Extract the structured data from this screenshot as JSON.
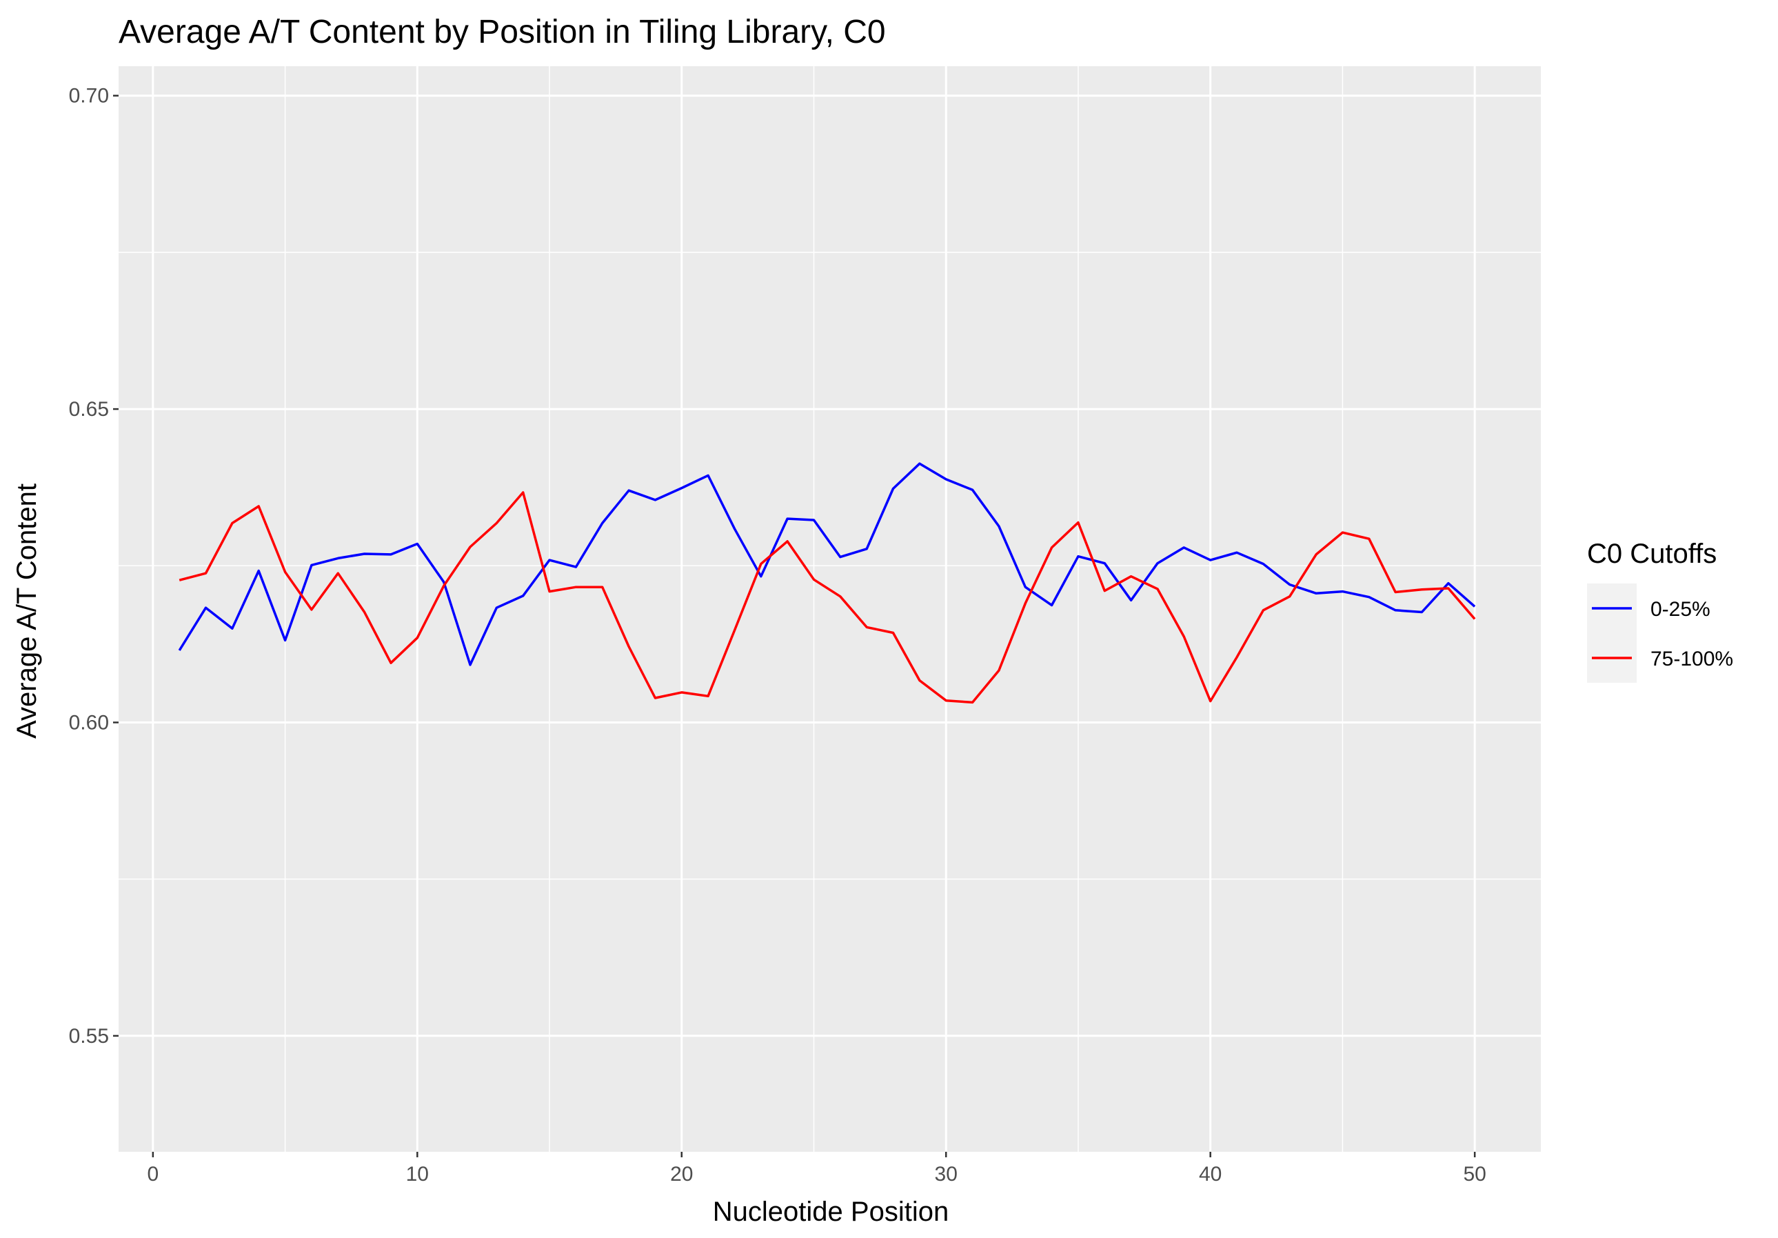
{
  "chart_data": {
    "type": "line",
    "title": "Average A/T Content by Position in Tiling Library, C0",
    "xlabel": "Nucleotide Position",
    "ylabel": "Average A/T Content",
    "xlim": [
      -1.3,
      52.5
    ],
    "ylim": [
      0.5315,
      0.7047
    ],
    "x_ticks": [
      0,
      10,
      20,
      30,
      40,
      50
    ],
    "x_tick_labels": [
      "0",
      "10",
      "20",
      "30",
      "40",
      "50"
    ],
    "x_minor_ticks": [
      5,
      15,
      25,
      35,
      45
    ],
    "y_ticks": [
      0.55,
      0.6,
      0.65,
      0.7
    ],
    "y_tick_labels": [
      "0.55",
      "0.60",
      "0.65",
      "0.70"
    ],
    "y_minor_ticks": [
      0.575,
      0.625,
      0.675
    ],
    "grid": true,
    "legend": {
      "title": "C0 Cutoffs",
      "position": "right"
    },
    "x": [
      1,
      2,
      3,
      4,
      5,
      6,
      7,
      8,
      9,
      10,
      11,
      12,
      13,
      14,
      15,
      16,
      17,
      18,
      19,
      20,
      21,
      22,
      23,
      24,
      25,
      26,
      27,
      28,
      29,
      30,
      31,
      32,
      33,
      34,
      35,
      36,
      37,
      38,
      39,
      40,
      41,
      42,
      43,
      44,
      45,
      46,
      47,
      48,
      49,
      50
    ],
    "series": [
      {
        "name": "0-25%",
        "color": "#0000ff",
        "values": [
          0.6115,
          0.6183,
          0.615,
          0.6242,
          0.6131,
          0.6251,
          0.6262,
          0.6269,
          0.6268,
          0.6285,
          0.6224,
          0.6092,
          0.6183,
          0.6202,
          0.6259,
          0.6248,
          0.6318,
          0.637,
          0.6355,
          0.6374,
          0.6394,
          0.6309,
          0.6233,
          0.6325,
          0.6323,
          0.6264,
          0.6277,
          0.6373,
          0.6413,
          0.6388,
          0.6371,
          0.6313,
          0.6216,
          0.6187,
          0.6265,
          0.6254,
          0.6195,
          0.6254,
          0.6279,
          0.6259,
          0.6271,
          0.6253,
          0.622,
          0.6206,
          0.6209,
          0.62,
          0.6179,
          0.6176,
          0.6222,
          0.6185
        ]
      },
      {
        "name": "75-100%",
        "color": "#ff0000",
        "values": [
          0.6227,
          0.6238,
          0.6318,
          0.6345,
          0.624,
          0.618,
          0.6238,
          0.6176,
          0.6095,
          0.6135,
          0.6218,
          0.628,
          0.6318,
          0.6367,
          0.6209,
          0.6216,
          0.6216,
          0.6121,
          0.6039,
          0.6048,
          0.6042,
          0.6147,
          0.6253,
          0.6289,
          0.6228,
          0.6201,
          0.6152,
          0.6143,
          0.6067,
          0.6035,
          0.6032,
          0.6083,
          0.619,
          0.6279,
          0.6319,
          0.621,
          0.6233,
          0.6213,
          0.6137,
          0.6034,
          0.6104,
          0.6179,
          0.6201,
          0.6268,
          0.6303,
          0.6293,
          0.6208,
          0.6212,
          0.6214,
          0.6165
        ]
      }
    ]
  }
}
